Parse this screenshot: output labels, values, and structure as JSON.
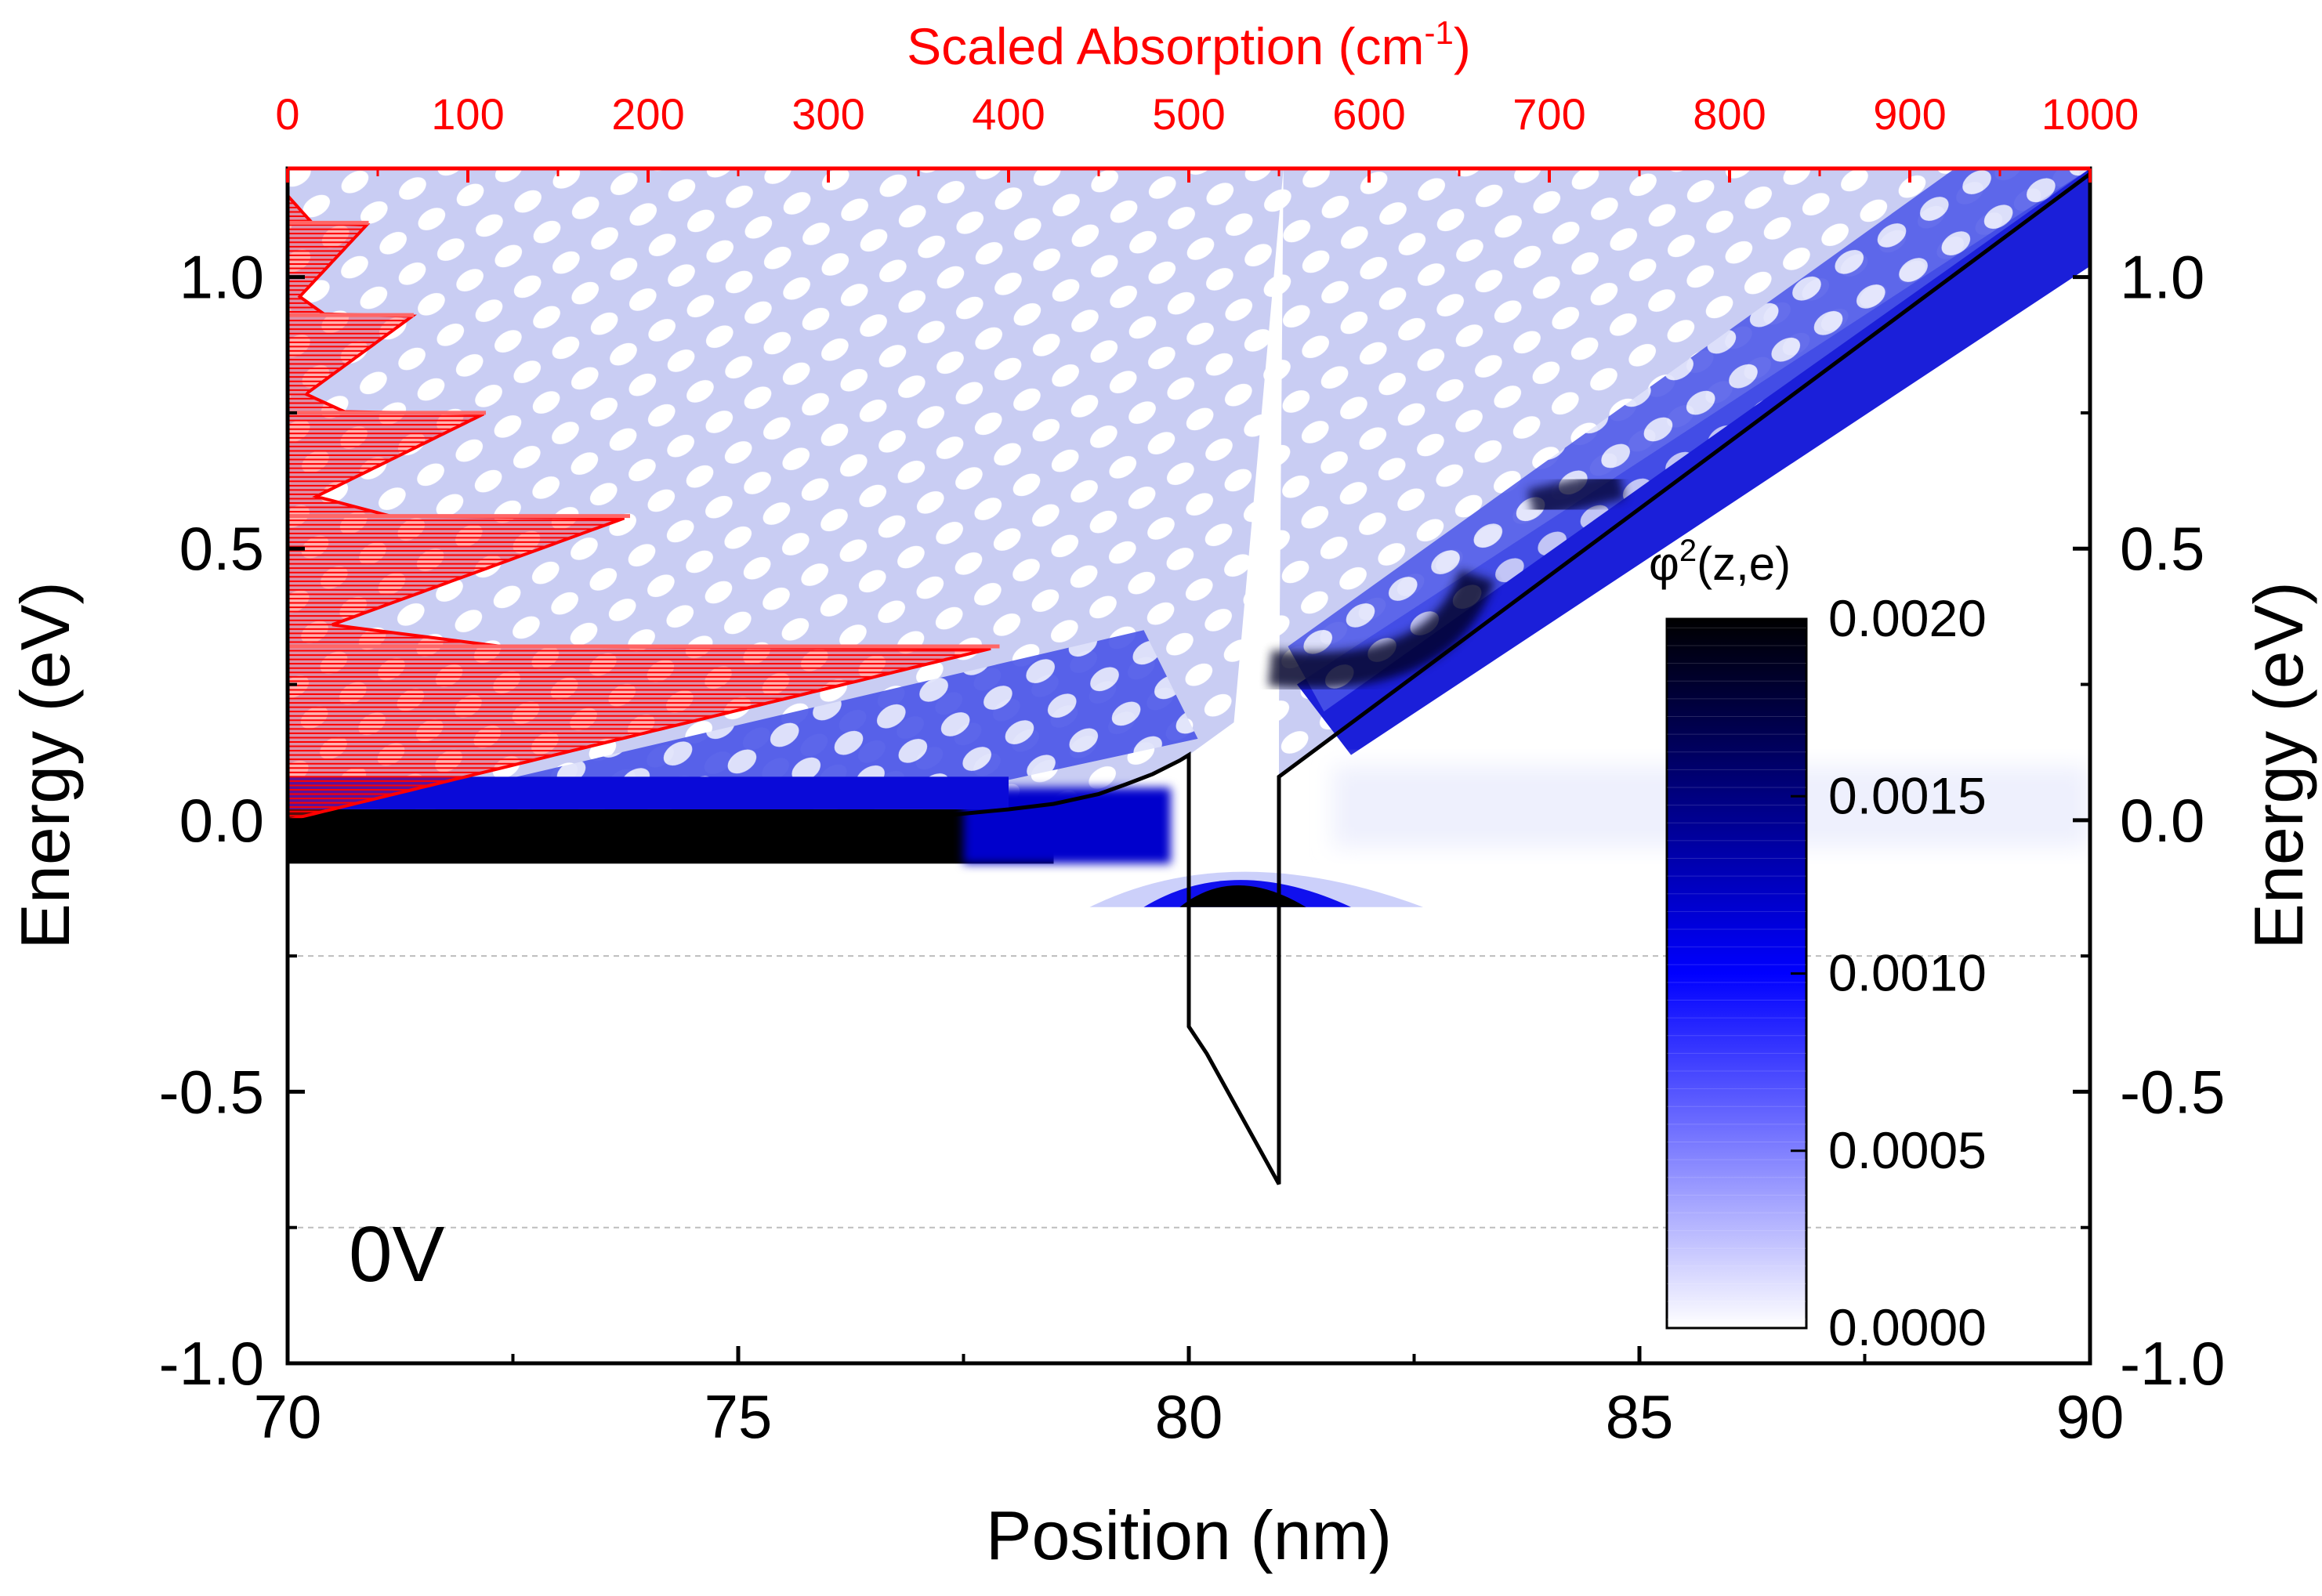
{
  "chart_data": {
    "type": "heatmap",
    "title": "",
    "annotation": "0V",
    "xlabel": "Position (nm)",
    "x_ticks": [
      "70",
      "75",
      "80",
      "85",
      "90"
    ],
    "xlim": [
      70,
      90
    ],
    "ylabel_left": "Energy (eV)",
    "ylabel_right": "Energy (eV)",
    "y_ticks": [
      "-1.0",
      "-0.5",
      "0.0",
      "0.5",
      "1.0"
    ],
    "ylim": [
      -1.0,
      1.2
    ],
    "top_axis": {
      "label": "Scaled Absorption (cm",
      "label_sup": "-1",
      "label_end": ")",
      "ticks": [
        "0",
        "100",
        "200",
        "300",
        "400",
        "500",
        "600",
        "700",
        "800",
        "900",
        "1000"
      ],
      "lim": [
        0,
        1000
      ],
      "color": "#ff0000"
    },
    "colorbar": {
      "title": "φ",
      "title_sup": "2",
      "title_end": "(z,e)",
      "ticks": [
        "0.0000",
        "0.0005",
        "0.0010",
        "0.0015",
        "0.0020"
      ],
      "range": [
        0,
        0.002
      ],
      "colors": [
        "#ffffff",
        "#0000ff",
        "#000000"
      ]
    },
    "gridlines_y": [
      -0.75,
      -0.25
    ],
    "band_profile": {
      "x": [
        70,
        70.5,
        71,
        72,
        73,
        74,
        75,
        76,
        77,
        77.5,
        78,
        78.5,
        79,
        79.3,
        79.6,
        79.9,
        80,
        80,
        80.2,
        80.5,
        80.8,
        81,
        81,
        81,
        90
      ],
      "y": [
        0,
        0,
        0,
        0,
        0,
        0,
        0,
        0,
        0.003,
        0.012,
        0.02,
        0.03,
        0.048,
        0.066,
        0.085,
        0.11,
        0.12,
        -0.38,
        -0.43,
        -0.52,
        -0.61,
        -0.67,
        -0.67,
        0.08,
        1.19
      ]
    },
    "ground_state": {
      "x_center": 80.5,
      "energy": -0.16
    },
    "absorption_peaks": {
      "energy": [
        0.32,
        0.56,
        0.75,
        0.93,
        1.1
      ],
      "value": [
        395,
        190,
        110,
        70,
        45
      ]
    }
  }
}
